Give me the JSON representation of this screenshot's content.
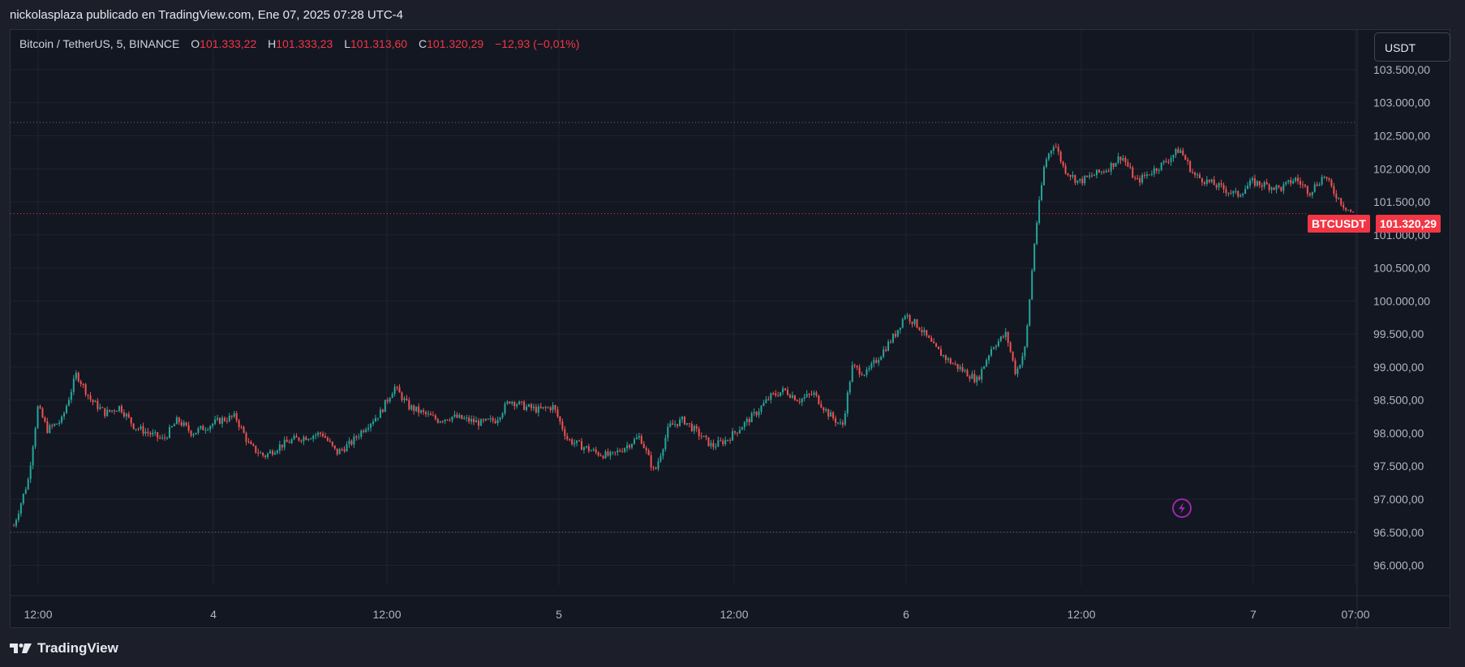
{
  "header": {
    "published_text": "nickolasplaza publicado en TradingView.com, Ene 07, 2025 07:28 UTC-4"
  },
  "legend": {
    "symbol": "Bitcoin / TetherUS, 5, BINANCE",
    "open_label": "O",
    "open_value": "101.333,22",
    "high_label": "H",
    "high_value": "101.333,23",
    "low_label": "L",
    "low_value": "101.313,60",
    "close_label": "C",
    "close_value": "101.320,29",
    "change": "−12,93 (−0,01%)"
  },
  "currency_button": "USDT",
  "price_tag": {
    "symbol": "BTCUSDT",
    "price": "101.320,29"
  },
  "footer": {
    "brand": "TradingView"
  },
  "colors": {
    "up": "#26a69a",
    "down": "#ef5350",
    "tag": "#f23645",
    "lightning": "#9c27b0"
  },
  "chart_data": {
    "type": "candlestick",
    "symbol": "BTCUSDT",
    "interval": "5",
    "ylim": [
      95700,
      104100
    ],
    "y_ticks": [
      "103.500,00",
      "103.000,00",
      "102.500,00",
      "102.000,00",
      "101.500,00",
      "101.000,00",
      "100.500,00",
      "100.000,00",
      "99.500,00",
      "99.000,00",
      "98.500,00",
      "98.000,00",
      "97.500,00",
      "97.000,00",
      "96.500,00",
      "96.000,00"
    ],
    "x_ticks": [
      "12:00",
      "4",
      "12:00",
      "5",
      "12:00",
      "6",
      "12:00",
      "7",
      "07:00"
    ],
    "dotted_levels": [
      102700,
      96500
    ],
    "last_price": 101320.29,
    "price_path": [
      [
        0,
        96600
      ],
      [
        1.5,
        97300
      ],
      [
        2.5,
        98400
      ],
      [
        3.5,
        98050
      ],
      [
        5,
        98200
      ],
      [
        6.5,
        98900
      ],
      [
        8,
        98500
      ],
      [
        9.5,
        98300
      ],
      [
        11,
        98400
      ],
      [
        12.5,
        98100
      ],
      [
        14,
        98000
      ],
      [
        15.5,
        97900
      ],
      [
        17,
        98200
      ],
      [
        18.5,
        98000
      ],
      [
        20,
        98100
      ],
      [
        21.5,
        98200
      ],
      [
        23,
        98250
      ],
      [
        24.5,
        97800
      ],
      [
        26,
        97650
      ],
      [
        27.5,
        97800
      ],
      [
        29,
        97900
      ],
      [
        30.5,
        97950
      ],
      [
        32,
        98000
      ],
      [
        33.5,
        97700
      ],
      [
        35,
        97850
      ],
      [
        36.5,
        98100
      ],
      [
        38,
        98300
      ],
      [
        39.5,
        98700
      ],
      [
        41,
        98400
      ],
      [
        42.5,
        98300
      ],
      [
        44,
        98200
      ],
      [
        45.5,
        98250
      ],
      [
        47,
        98200
      ],
      [
        48.5,
        98150
      ],
      [
        50,
        98200
      ],
      [
        51.5,
        98500
      ],
      [
        53,
        98400
      ],
      [
        54.5,
        98350
      ],
      [
        56,
        98400
      ],
      [
        57.5,
        97900
      ],
      [
        59,
        97800
      ],
      [
        60.5,
        97700
      ],
      [
        62,
        97650
      ],
      [
        63.5,
        97800
      ],
      [
        65,
        97950
      ],
      [
        66.5,
        97400
      ],
      [
        68,
        98100
      ],
      [
        69.5,
        98200
      ],
      [
        71,
        98000
      ],
      [
        72.5,
        97800
      ],
      [
        74,
        97900
      ],
      [
        75.5,
        98100
      ],
      [
        77,
        98300
      ],
      [
        78.5,
        98550
      ],
      [
        80,
        98650
      ],
      [
        81.5,
        98500
      ],
      [
        83,
        98600
      ],
      [
        84.5,
        98300
      ],
      [
        86,
        98100
      ],
      [
        87,
        99000
      ],
      [
        88.5,
        98900
      ],
      [
        90,
        99200
      ],
      [
        91.5,
        99500
      ],
      [
        92.5,
        99800
      ],
      [
        94,
        99600
      ],
      [
        95.5,
        99300
      ],
      [
        97,
        99100
      ],
      [
        98.5,
        98950
      ],
      [
        100,
        98800
      ],
      [
        101.5,
        99300
      ],
      [
        103,
        99500
      ],
      [
        104,
        98900
      ],
      [
        105,
        99300
      ],
      [
        106,
        101000
      ],
      [
        107,
        102100
      ],
      [
        108,
        102400
      ],
      [
        109,
        102000
      ],
      [
        110.5,
        101800
      ],
      [
        112,
        101900
      ],
      [
        113.5,
        102000
      ],
      [
        115,
        102200
      ],
      [
        116.5,
        101800
      ],
      [
        118,
        101950
      ],
      [
        119.5,
        102100
      ],
      [
        121,
        102300
      ],
      [
        122.5,
        101900
      ],
      [
        124,
        101800
      ],
      [
        125.5,
        101700
      ],
      [
        127,
        101600
      ],
      [
        128.5,
        101800
      ],
      [
        130,
        101750
      ],
      [
        131.5,
        101700
      ],
      [
        133,
        101850
      ],
      [
        134.5,
        101650
      ],
      [
        136,
        101900
      ],
      [
        137,
        101650
      ],
      [
        138,
        101450
      ],
      [
        139,
        101320
      ]
    ]
  }
}
